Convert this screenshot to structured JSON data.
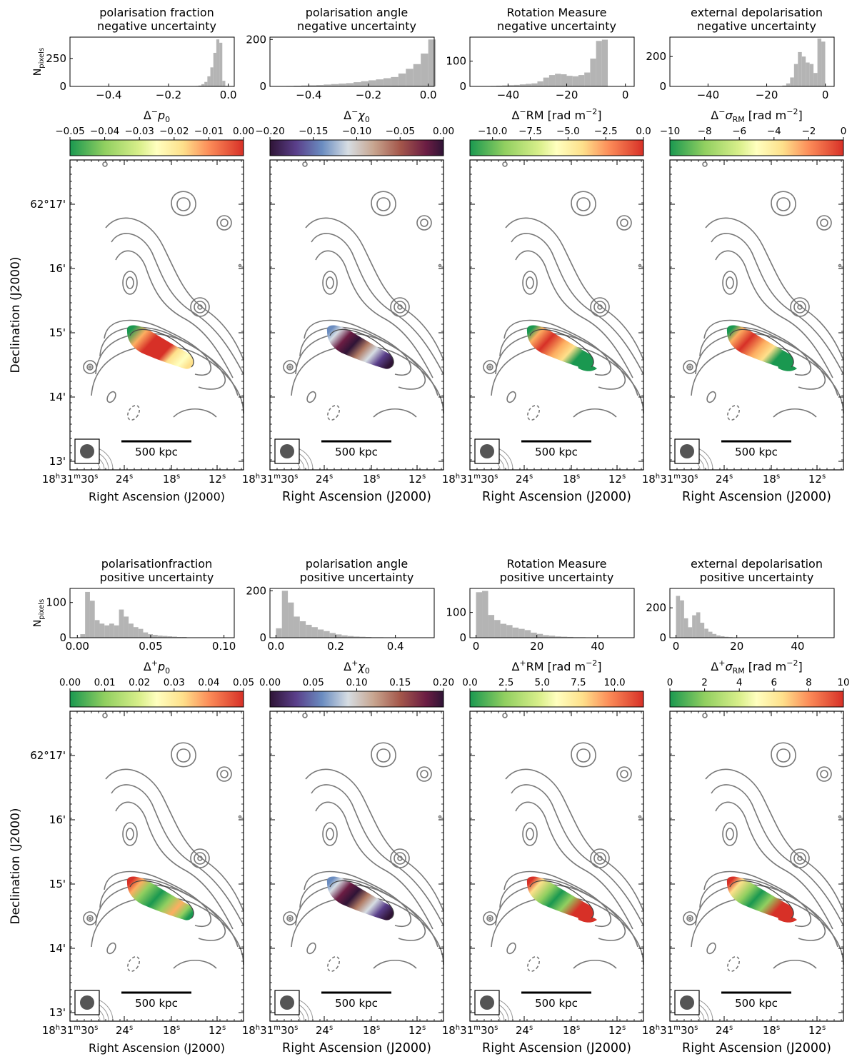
{
  "figure": {
    "y_label": "Declination (J2000)",
    "x_label": "Right Ascension (J2000)",
    "hist_ylabel_main": "N",
    "hist_ylabel_sub": "pixels",
    "scalebar_label": "500 kpc",
    "ra_ticks": [
      {
        "value": "30",
        "main": "18",
        "h": "h",
        "mm": "31",
        "m": "m",
        "ss": "30",
        "s": "s"
      },
      {
        "value": "24",
        "main": "24",
        "s": "s"
      },
      {
        "value": "18",
        "main": "18",
        "s": "s"
      },
      {
        "value": "12",
        "main": "12",
        "s": "s"
      }
    ],
    "dec_ticks": [
      {
        "value": "62:17",
        "label": "62°17'"
      },
      {
        "value": "62:16",
        "label": "16'"
      },
      {
        "value": "62:15",
        "label": "15'"
      },
      {
        "value": "62:14",
        "label": "14'"
      },
      {
        "value": "62:13",
        "label": "13'"
      }
    ]
  },
  "chart_data": [
    {
      "type": "bar",
      "row": 0,
      "col": 0,
      "title_line1": "polarisation fraction",
      "title_line2": "negative uncertainty",
      "xlim": [
        -0.53,
        0.02
      ],
      "ylim": [
        0,
        440
      ],
      "xticks": [
        -0.4,
        -0.2,
        0.0
      ],
      "xtick_labels": [
        "−0.4",
        "−0.2",
        "0.0"
      ],
      "yticks": [
        0,
        250
      ],
      "ytick_labels": [
        "0",
        "250"
      ],
      "bin_start": -0.12,
      "bin_width": 0.01,
      "counts": [
        2,
        4,
        8,
        20,
        40,
        90,
        170,
        300,
        420,
        390,
        50,
        5
      ],
      "cbar_label": "Δ⁻p₀",
      "cbar_label_parts": [
        "Δ",
        "−",
        "p",
        "0",
        ""
      ],
      "colormap": "green-yellow-red",
      "clim": [
        -0.05,
        0.0
      ],
      "cbar_ticks": [
        -0.05,
        -0.04,
        -0.03,
        -0.02,
        -0.01,
        0.0
      ],
      "cbar_tick_labels": [
        "−0.05",
        "−0.04",
        "−0.03",
        "−0.02",
        "−0.01",
        "0.00"
      ],
      "map_pattern": "pneg"
    },
    {
      "type": "bar",
      "row": 0,
      "col": 1,
      "title_line1": "polarisation angle",
      "title_line2": "negative uncertainty",
      "xlim": [
        -0.53,
        0.02
      ],
      "ylim": [
        0,
        210
      ],
      "xticks": [
        -0.4,
        -0.2,
        0.0
      ],
      "xtick_labels": [
        "−0.4",
        "−0.2",
        "0.0"
      ],
      "yticks": [
        0,
        200
      ],
      "ytick_labels": [
        "0",
        "200"
      ],
      "bin_start": -0.5,
      "bin_width": 0.025,
      "counts": [
        1,
        2,
        3,
        4,
        5,
        6,
        8,
        10,
        12,
        14,
        18,
        22,
        26,
        30,
        35,
        40,
        55,
        75,
        95,
        140,
        200
      ],
      "cbar_label": "Δ⁻χ₀",
      "cbar_label_parts": [
        "Δ",
        "−",
        "χ",
        "0",
        ""
      ],
      "colormap": "twilight",
      "clim": [
        -0.2,
        0.0
      ],
      "cbar_ticks": [
        -0.2,
        -0.15,
        -0.1,
        -0.05,
        0.0
      ],
      "cbar_tick_labels": [
        "−0.20",
        "−0.15",
        "−0.10",
        "−0.05",
        "0.00"
      ],
      "map_pattern": "angle"
    },
    {
      "type": "bar",
      "row": 0,
      "col": 2,
      "title_line1": "Rotation Measure",
      "title_line2": "negative uncertainty",
      "xlim": [
        -53,
        3
      ],
      "ylim": [
        0,
        195
      ],
      "xticks": [
        -40,
        -20,
        0
      ],
      "xtick_labels": [
        "−40",
        "−20",
        "0"
      ],
      "yticks": [
        0,
        100
      ],
      "ytick_labels": [
        "0",
        "100"
      ],
      "bin_start": -50,
      "bin_width": 2,
      "counts": [
        1,
        1,
        2,
        3,
        4,
        5,
        6,
        8,
        10,
        12,
        20,
        35,
        45,
        50,
        48,
        42,
        40,
        45,
        55,
        110,
        180,
        185
      ],
      "cbar_label": "Δ⁻RM [rad m⁻²]",
      "cbar_label_parts": [
        "Δ",
        "−",
        "RM [rad m",
        "",
        "−2"
      ],
      "cbar_label_close": "]",
      "colormap": "green-yellow-red",
      "clim": [
        -11.5,
        0.0
      ],
      "cbar_ticks": [
        -10.0,
        -7.5,
        -5.0,
        -2.5,
        0.0
      ],
      "cbar_tick_labels": [
        "−10.0",
        "−7.5",
        "−5.0",
        "−2.5",
        "0.0"
      ],
      "map_pattern": "rmneg"
    },
    {
      "type": "bar",
      "row": 0,
      "col": 3,
      "title_line1": "external depolarisation",
      "title_line2": "negative uncertainty",
      "xlim": [
        -53,
        3
      ],
      "ylim": [
        0,
        330
      ],
      "xticks": [
        -40,
        -20,
        0
      ],
      "xtick_labels": [
        "−40",
        "−20",
        "0"
      ],
      "yticks": [
        0,
        200
      ],
      "ytick_labels": [
        "0",
        "200"
      ],
      "bin_start": -16,
      "bin_width": 1.33,
      "counts": [
        2,
        6,
        20,
        60,
        150,
        230,
        200,
        160,
        150,
        90,
        320,
        300
      ],
      "cbar_label": "Δ⁻σRM [rad m⁻²]",
      "cbar_label_parts": [
        "Δ",
        "−",
        "σ",
        "RM",
        " [rad m"
      ],
      "cbar_label_exp": "−2",
      "cbar_label_close": "]",
      "colormap": "green-yellow-red",
      "clim": [
        -10,
        0
      ],
      "cbar_ticks": [
        -10,
        -8,
        -6,
        -4,
        -2,
        0
      ],
      "cbar_tick_labels": [
        "−10",
        "−8",
        "−6",
        "−4",
        "−2",
        "0"
      ],
      "map_pattern": "rmneg"
    },
    {
      "type": "bar",
      "row": 1,
      "col": 0,
      "title_line1": "polarisationfraction",
      "title_line2": "positive uncertainty",
      "xlim": [
        -0.005,
        0.107
      ],
      "ylim": [
        0,
        140
      ],
      "xticks": [
        0.0,
        0.05,
        0.1
      ],
      "xtick_labels": [
        "0.00",
        "0.05",
        "0.10"
      ],
      "yticks": [
        0,
        100
      ],
      "ytick_labels": [
        "0",
        "100"
      ],
      "bin_start": 0.002,
      "bin_width": 0.0033,
      "counts": [
        10,
        130,
        105,
        50,
        40,
        35,
        40,
        35,
        80,
        60,
        40,
        30,
        25,
        15,
        10,
        8,
        6,
        5,
        4,
        3,
        2,
        2,
        1,
        1,
        1,
        1,
        1,
        1,
        1
      ],
      "cbar_label": "Δ⁺p₀",
      "cbar_label_parts": [
        "Δ",
        "+",
        "p",
        "0",
        ""
      ],
      "colormap": "green-yellow-red",
      "clim": [
        0.0,
        0.05
      ],
      "cbar_ticks": [
        0.0,
        0.01,
        0.02,
        0.03,
        0.04,
        0.05
      ],
      "cbar_tick_labels": [
        "0.00",
        "0.01",
        "0.02",
        "0.03",
        "0.04",
        "0.05"
      ],
      "map_pattern": "ppos"
    },
    {
      "type": "bar",
      "row": 1,
      "col": 1,
      "title_line1": "polarisation angle",
      "title_line2": "positive uncertainty",
      "xlim": [
        -0.02,
        0.53
      ],
      "ylim": [
        0,
        210
      ],
      "xticks": [
        0.0,
        0.2,
        0.4
      ],
      "xtick_labels": [
        "0.0",
        "0.2",
        "0.4"
      ],
      "yticks": [
        0,
        200
      ],
      "ytick_labels": [
        "0",
        "200"
      ],
      "bin_start": 0.0,
      "bin_width": 0.02,
      "counts": [
        40,
        200,
        150,
        90,
        70,
        55,
        45,
        35,
        28,
        20,
        14,
        10,
        7,
        5,
        4,
        3,
        2,
        2,
        1,
        1,
        1,
        1
      ],
      "cbar_label": "Δ⁺χ₀",
      "cbar_label_parts": [
        "Δ",
        "+",
        "χ",
        "0",
        ""
      ],
      "colormap": "twilight",
      "clim": [
        0.0,
        0.2
      ],
      "cbar_ticks": [
        0.0,
        0.05,
        0.1,
        0.15,
        0.2
      ],
      "cbar_tick_labels": [
        "0.00",
        "0.05",
        "0.10",
        "0.15",
        "0.20"
      ],
      "map_pattern": "angle"
    },
    {
      "type": "bar",
      "row": 1,
      "col": 2,
      "title_line1": "Rotation Measure",
      "title_line2": "positive uncertainty",
      "xlim": [
        -2,
        52
      ],
      "ylim": [
        0,
        195
      ],
      "xticks": [
        0,
        20,
        40
      ],
      "xtick_labels": [
        "0",
        "20",
        "40"
      ],
      "yticks": [
        0,
        100
      ],
      "ytick_labels": [
        "0",
        "100"
      ],
      "bin_start": 0,
      "bin_width": 2,
      "counts": [
        180,
        185,
        90,
        70,
        55,
        50,
        40,
        35,
        30,
        20,
        15,
        10,
        8,
        5,
        4,
        3,
        2,
        2,
        1,
        1
      ],
      "cbar_label": "Δ⁺RM [rad m⁻²]",
      "cbar_label_parts": [
        "Δ",
        "+",
        "RM [rad m",
        "",
        "−2"
      ],
      "cbar_label_close": "]",
      "colormap": "green-yellow-red",
      "clim": [
        0.0,
        12.0
      ],
      "cbar_ticks": [
        0.0,
        2.5,
        5.0,
        7.5,
        10.0
      ],
      "cbar_tick_labels": [
        "0.0",
        "2.5",
        "5.0",
        "7.5",
        "10.0"
      ],
      "map_pattern": "rmpos"
    },
    {
      "type": "bar",
      "row": 1,
      "col": 3,
      "title_line1": "external depolarisation",
      "title_line2": "positive uncertainty",
      "xlim": [
        -2,
        52
      ],
      "ylim": [
        0,
        330
      ],
      "xticks": [
        0,
        20,
        40
      ],
      "xtick_labels": [
        "0",
        "20",
        "40"
      ],
      "yticks": [
        0,
        200
      ],
      "ytick_labels": [
        "0",
        "200"
      ],
      "bin_start": 0,
      "bin_width": 1.33,
      "counts": [
        280,
        250,
        130,
        70,
        150,
        170,
        100,
        60,
        40,
        25,
        15,
        10,
        6,
        4,
        2
      ],
      "cbar_label": "Δ⁺σRM [rad m⁻²]",
      "cbar_label_parts": [
        "Δ",
        "+",
        "σ",
        "RM",
        " [rad m"
      ],
      "cbar_label_exp": "−2",
      "cbar_label_close": "]",
      "colormap": "green-yellow-red",
      "clim": [
        0,
        10
      ],
      "cbar_ticks": [
        0,
        2,
        4,
        6,
        8,
        10
      ],
      "cbar_tick_labels": [
        "0",
        "2",
        "4",
        "6",
        "8",
        "10"
      ],
      "map_pattern": "rmpos"
    }
  ]
}
